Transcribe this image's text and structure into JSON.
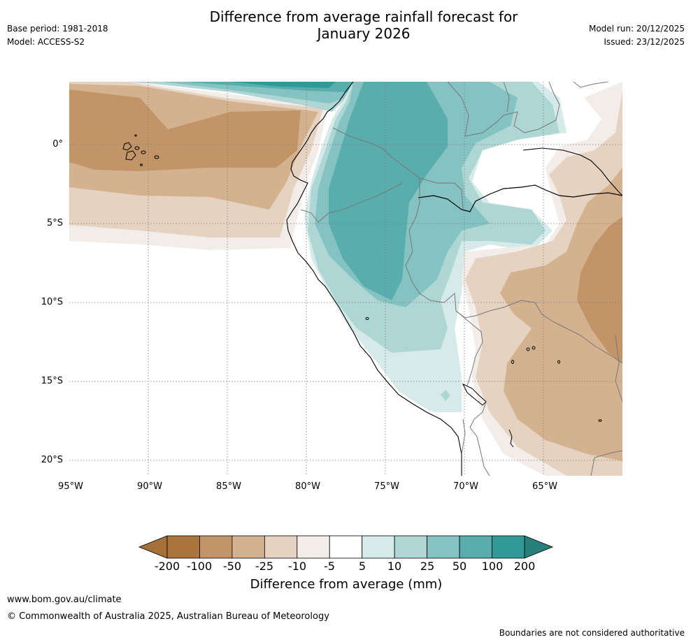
{
  "header": {
    "title": "Difference from average rainfall forecast for\nJanuary 2026",
    "base_period": "Base period: 1981-2018",
    "model": "Model: ACCESS-S2",
    "model_run": "Model run: 20/12/2025",
    "issued": "Issued: 23/12/2025"
  },
  "map": {
    "lat_labels": [
      "0°",
      "5°S",
      "10°S",
      "15°S",
      "20°S"
    ],
    "lon_labels": [
      "95°W",
      "90°W",
      "85°W",
      "80°W",
      "75°W",
      "70°W",
      "65°W"
    ]
  },
  "colorbar": {
    "title": "Difference from average (mm)",
    "ticks": [
      "-200",
      "-100",
      "-50",
      "-25",
      "-10",
      "-5",
      "5",
      "10",
      "25",
      "50",
      "100",
      "200"
    ],
    "colors": [
      "#a6703a",
      "#ac7540",
      "#c29468",
      "#d4b290",
      "#e5d2c0",
      "#f2ede8",
      "#ffffff",
      "#d6eae9",
      "#aed6d5",
      "#85c2c2",
      "#5aadad",
      "#319a97",
      "#297f7c"
    ]
  },
  "footer": {
    "url": "www.bom.gov.au/climate",
    "copyright": "© Commonwealth of Australia 2025, Australian Bureau of Meteorology",
    "disclaimer": "Boundaries are not considered authoritative"
  }
}
